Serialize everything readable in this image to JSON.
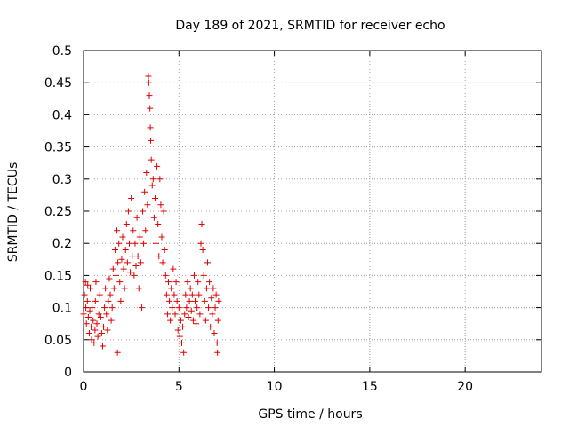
{
  "chart_data": {
    "type": "scatter",
    "title": "Day 189 of 2021, SRMTID for receiver echo",
    "xlabel": "GPS time / hours",
    "ylabel": "SRMTID / TECUs",
    "xlim": [
      0,
      24
    ],
    "ylim": [
      0,
      0.5
    ],
    "grid": true,
    "marker": "+",
    "marker_color": "#e00000",
    "x_ticks": [
      0,
      5,
      10,
      15,
      20
    ],
    "x_tick_labels": [
      "0",
      "5",
      "10",
      "15",
      "20"
    ],
    "y_ticks": [
      0,
      0.05,
      0.1,
      0.15,
      0.2,
      0.25,
      0.3,
      0.35,
      0.4,
      0.45,
      0.5
    ],
    "y_tick_labels": [
      "0",
      "0.05",
      "0.1",
      "0.15",
      "0.2",
      "0.25",
      "0.3",
      "0.35",
      "0.4",
      "0.45",
      "0.5"
    ],
    "series": [
      {
        "name": "SRMTID",
        "points": [
          [
            0.0,
            0.09
          ],
          [
            0.05,
            0.12
          ],
          [
            0.1,
            0.14
          ],
          [
            0.12,
            0.1
          ],
          [
            0.15,
            0.075
          ],
          [
            0.2,
            0.11
          ],
          [
            0.22,
            0.135
          ],
          [
            0.25,
            0.085
          ],
          [
            0.3,
            0.06
          ],
          [
            0.33,
            0.095
          ],
          [
            0.35,
            0.13
          ],
          [
            0.4,
            0.07
          ],
          [
            0.42,
            0.05
          ],
          [
            0.45,
            0.1
          ],
          [
            0.5,
            0.08
          ],
          [
            0.55,
            0.045
          ],
          [
            0.6,
            0.065
          ],
          [
            0.62,
            0.11
          ],
          [
            0.65,
            0.14
          ],
          [
            0.7,
            0.075
          ],
          [
            0.75,
            0.055
          ],
          [
            0.8,
            0.09
          ],
          [
            0.85,
            0.12
          ],
          [
            0.9,
            0.085
          ],
          [
            0.95,
            0.06
          ],
          [
            1.0,
            0.04
          ],
          [
            1.05,
            0.07
          ],
          [
            1.1,
            0.1
          ],
          [
            1.15,
            0.13
          ],
          [
            1.2,
            0.09
          ],
          [
            1.25,
            0.065
          ],
          [
            1.3,
            0.11
          ],
          [
            1.35,
            0.145
          ],
          [
            1.4,
            0.12
          ],
          [
            1.45,
            0.08
          ],
          [
            1.5,
            0.1
          ],
          [
            1.55,
            0.16
          ],
          [
            1.6,
            0.13
          ],
          [
            1.65,
            0.19
          ],
          [
            1.7,
            0.15
          ],
          [
            1.75,
            0.22
          ],
          [
            1.78,
            0.03
          ],
          [
            1.8,
            0.17
          ],
          [
            1.85,
            0.2
          ],
          [
            1.9,
            0.14
          ],
          [
            1.95,
            0.11
          ],
          [
            2.0,
            0.175
          ],
          [
            2.05,
            0.21
          ],
          [
            2.1,
            0.16
          ],
          [
            2.15,
            0.13
          ],
          [
            2.2,
            0.19
          ],
          [
            2.25,
            0.23
          ],
          [
            2.3,
            0.17
          ],
          [
            2.35,
            0.25
          ],
          [
            2.4,
            0.2
          ],
          [
            2.45,
            0.155
          ],
          [
            2.5,
            0.27
          ],
          [
            2.55,
            0.18
          ],
          [
            2.6,
            0.22
          ],
          [
            2.65,
            0.15
          ],
          [
            2.7,
            0.2
          ],
          [
            2.75,
            0.165
          ],
          [
            2.8,
            0.24
          ],
          [
            2.85,
            0.18
          ],
          [
            2.9,
            0.13
          ],
          [
            2.95,
            0.21
          ],
          [
            3.0,
            0.17
          ],
          [
            3.05,
            0.1
          ],
          [
            3.1,
            0.25
          ],
          [
            3.15,
            0.2
          ],
          [
            3.2,
            0.28
          ],
          [
            3.25,
            0.22
          ],
          [
            3.3,
            0.31
          ],
          [
            3.35,
            0.26
          ],
          [
            3.4,
            0.46
          ],
          [
            3.42,
            0.45
          ],
          [
            3.45,
            0.43
          ],
          [
            3.48,
            0.41
          ],
          [
            3.5,
            0.38
          ],
          [
            3.52,
            0.36
          ],
          [
            3.55,
            0.33
          ],
          [
            3.6,
            0.29
          ],
          [
            3.65,
            0.3
          ],
          [
            3.7,
            0.24
          ],
          [
            3.75,
            0.27
          ],
          [
            3.8,
            0.2
          ],
          [
            3.85,
            0.32
          ],
          [
            3.9,
            0.23
          ],
          [
            3.95,
            0.18
          ],
          [
            4.0,
            0.3
          ],
          [
            4.05,
            0.26
          ],
          [
            4.1,
            0.21
          ],
          [
            4.15,
            0.17
          ],
          [
            4.2,
            0.25
          ],
          [
            4.25,
            0.19
          ],
          [
            4.3,
            0.15
          ],
          [
            4.35,
            0.12
          ],
          [
            4.4,
            0.09
          ],
          [
            4.45,
            0.14
          ],
          [
            4.5,
            0.11
          ],
          [
            4.55,
            0.08
          ],
          [
            4.6,
            0.13
          ],
          [
            4.65,
            0.1
          ],
          [
            4.7,
            0.16
          ],
          [
            4.75,
            0.12
          ],
          [
            4.8,
            0.09
          ],
          [
            4.85,
            0.14
          ],
          [
            4.9,
            0.11
          ],
          [
            4.95,
            0.065
          ],
          [
            5.0,
            0.1
          ],
          [
            5.05,
            0.055
          ],
          [
            5.1,
            0.08
          ],
          [
            5.15,
            0.045
          ],
          [
            5.2,
            0.07
          ],
          [
            5.25,
            0.03
          ],
          [
            5.3,
            0.09
          ],
          [
            5.35,
            0.12
          ],
          [
            5.4,
            0.1
          ],
          [
            5.45,
            0.14
          ],
          [
            5.5,
            0.085
          ],
          [
            5.55,
            0.11
          ],
          [
            5.6,
            0.13
          ],
          [
            5.65,
            0.095
          ],
          [
            5.7,
            0.12
          ],
          [
            5.75,
            0.08
          ],
          [
            5.8,
            0.15
          ],
          [
            5.85,
            0.11
          ],
          [
            5.9,
            0.075
          ],
          [
            5.95,
            0.1
          ],
          [
            6.0,
            0.14
          ],
          [
            6.05,
            0.12
          ],
          [
            6.1,
            0.09
          ],
          [
            6.15,
            0.2
          ],
          [
            6.2,
            0.23
          ],
          [
            6.25,
            0.19
          ],
          [
            6.3,
            0.15
          ],
          [
            6.35,
            0.11
          ],
          [
            6.4,
            0.08
          ],
          [
            6.45,
            0.13
          ],
          [
            6.5,
            0.17
          ],
          [
            6.55,
            0.1
          ],
          [
            6.6,
            0.14
          ],
          [
            6.65,
            0.07
          ],
          [
            6.7,
            0.115
          ],
          [
            6.75,
            0.09
          ],
          [
            6.8,
            0.13
          ],
          [
            6.85,
            0.06
          ],
          [
            6.9,
            0.1
          ],
          [
            6.95,
            0.12
          ],
          [
            7.0,
            0.045
          ],
          [
            7.02,
            0.03
          ],
          [
            7.05,
            0.08
          ],
          [
            7.08,
            0.11
          ]
        ]
      }
    ]
  }
}
